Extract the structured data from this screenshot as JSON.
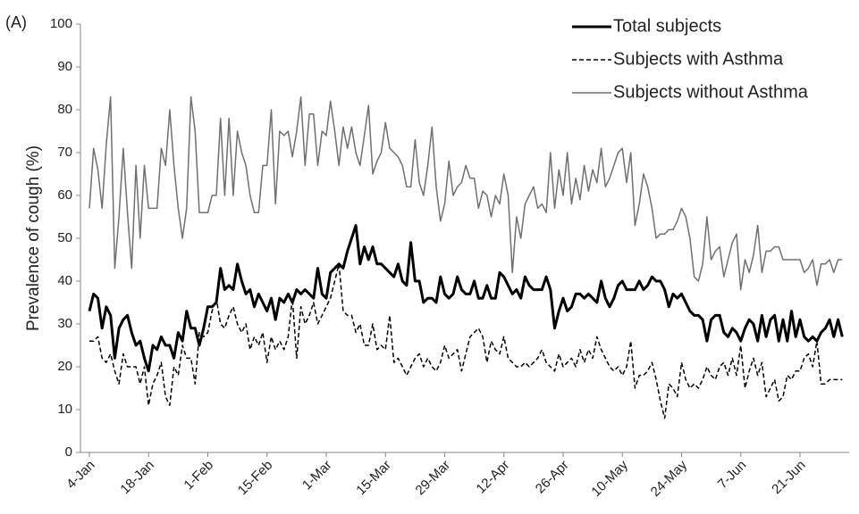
{
  "chart_data": {
    "type": "line",
    "panel_label": "(A)",
    "y_label": "Prevalence of cough (%)",
    "ylim": [
      0,
      100
    ],
    "yticks": [
      0,
      10,
      20,
      30,
      40,
      50,
      60,
      70,
      80,
      90,
      100
    ],
    "legend": "upper right",
    "categories": [
      "4-Jan",
      null,
      null,
      null,
      null,
      null,
      null,
      null,
      null,
      null,
      null,
      null,
      null,
      null,
      "18-Jan",
      null,
      null,
      null,
      null,
      null,
      null,
      null,
      null,
      null,
      null,
      null,
      null,
      null,
      "1-Feb",
      null,
      null,
      null,
      null,
      null,
      null,
      null,
      null,
      null,
      null,
      null,
      null,
      null,
      "15-Feb",
      null,
      null,
      null,
      null,
      null,
      null,
      null,
      null,
      null,
      null,
      null,
      null,
      null,
      "1-Mar",
      null,
      null,
      null,
      null,
      null,
      null,
      null,
      null,
      null,
      null,
      null,
      null,
      null,
      "15-Mar",
      null,
      null,
      null,
      null,
      null,
      null,
      null,
      null,
      null,
      null,
      null,
      null,
      null,
      "29-Mar",
      null,
      null,
      null,
      null,
      null,
      null,
      null,
      null,
      null,
      null,
      null,
      null,
      null,
      "12-Apr",
      null,
      null,
      null,
      null,
      null,
      null,
      null,
      null,
      null,
      null,
      null,
      null,
      null,
      "26-Apr",
      null,
      null,
      null,
      null,
      null,
      null,
      null,
      null,
      null,
      null,
      null,
      null,
      null,
      "10-May",
      null,
      null,
      null,
      null,
      null,
      null,
      null,
      null,
      null,
      null,
      null,
      null,
      null,
      "24-May",
      null,
      null,
      null,
      null,
      null,
      null,
      null,
      null,
      null,
      null,
      null,
      null,
      null,
      "7-Jun",
      null,
      null,
      null,
      null,
      null,
      null,
      null,
      null,
      null,
      null,
      null,
      null,
      null,
      "21-Jun",
      null,
      null,
      null,
      null,
      null,
      null,
      null,
      null,
      null,
      null
    ],
    "series": [
      {
        "name": "Total subjects",
        "color": "#000000",
        "width": 3,
        "dash": false,
        "values": [
          33,
          37,
          36,
          29,
          34,
          32,
          22,
          29,
          31,
          32,
          28,
          25,
          26,
          22,
          19,
          25,
          24,
          27,
          25,
          25,
          22,
          28,
          26,
          33,
          29,
          29,
          25,
          29,
          34,
          34,
          35,
          43,
          38,
          39,
          38,
          44,
          40,
          37,
          38,
          34,
          37,
          35,
          33,
          36,
          31,
          36,
          35,
          37,
          35,
          38,
          37,
          38,
          37,
          36,
          43,
          37,
          36,
          42,
          43,
          44,
          43,
          47,
          50,
          53,
          44,
          48,
          45,
          48,
          44,
          44,
          43,
          42,
          41,
          44,
          40,
          39,
          49,
          40,
          40,
          35,
          36,
          36,
          35,
          41,
          37,
          36,
          37,
          41,
          38,
          37,
          37,
          40,
          36,
          36,
          39,
          36,
          36,
          42,
          41,
          39,
          37,
          38,
          36,
          41,
          39,
          38,
          38,
          38,
          41,
          38,
          29,
          33,
          36,
          33,
          34,
          37,
          37,
          36,
          37,
          36,
          35,
          40,
          36,
          34,
          36,
          39,
          40,
          38,
          38,
          38,
          40,
          38,
          39,
          41,
          40,
          40,
          38,
          34,
          37,
          36,
          37,
          35,
          33,
          32,
          32,
          31,
          26,
          31,
          32,
          32,
          28,
          27,
          29,
          28,
          26,
          29,
          31,
          30,
          26,
          32,
          27,
          31,
          32,
          26,
          31,
          26,
          33,
          27,
          31,
          27,
          26,
          27,
          26,
          28,
          29,
          31,
          27,
          31,
          27
        ]
      },
      {
        "name": "Subjects with Asthma",
        "color": "#000000",
        "width": 1.5,
        "dash": true,
        "values": [
          26,
          26,
          27,
          22,
          21,
          23,
          19,
          16,
          23,
          20,
          20,
          20,
          16,
          20,
          11,
          16,
          18,
          21,
          13,
          11,
          20,
          18,
          25,
          22,
          22,
          16,
          28,
          27,
          28,
          33,
          36,
          30,
          29,
          32,
          34,
          30,
          28,
          30,
          24,
          27,
          25,
          28,
          21,
          27,
          24,
          26,
          24,
          27,
          36,
          22,
          34,
          30,
          32,
          35,
          30,
          32,
          34,
          36,
          40,
          44,
          33,
          32,
          32,
          28,
          30,
          25,
          25,
          30,
          24,
          25,
          24,
          32,
          21,
          22,
          20,
          18,
          20,
          22,
          23,
          20,
          22,
          20,
          19,
          21,
          25,
          22,
          23,
          24,
          19,
          23,
          27,
          28,
          29,
          27,
          21,
          26,
          24,
          23,
          27,
          22,
          21,
          20,
          20,
          21,
          20,
          21,
          22,
          24,
          21,
          20,
          19,
          23,
          20,
          21,
          22,
          20,
          24,
          21,
          24,
          22,
          27,
          24,
          22,
          20,
          19,
          20,
          18,
          20,
          26,
          15,
          18,
          18,
          19,
          21,
          17,
          12,
          8,
          16,
          15,
          13,
          21,
          17,
          15,
          16,
          15,
          17,
          20,
          18,
          17,
          20,
          21,
          18,
          22,
          18,
          25,
          15,
          19,
          22,
          18,
          21,
          13,
          15,
          17,
          12,
          13,
          18,
          17,
          19,
          19,
          22,
          23,
          20,
          26,
          16,
          16,
          17,
          17,
          17,
          17
        ]
      },
      {
        "name": "Subjects without Asthma",
        "color": "#707070",
        "width": 1.5,
        "dash": false,
        "values": [
          57,
          71,
          66,
          57,
          72,
          83,
          43,
          55,
          71,
          56,
          43,
          67,
          50,
          67,
          57,
          57,
          57,
          71,
          67,
          80,
          67,
          57,
          50,
          57,
          83,
          75,
          56,
          56,
          56,
          60,
          60,
          78,
          60,
          78,
          60,
          75,
          70,
          67,
          60,
          56,
          56,
          67,
          67,
          80,
          58,
          75,
          74,
          75,
          69,
          75,
          83,
          67,
          79,
          79,
          67,
          75,
          74,
          82,
          75,
          67,
          76,
          71,
          76,
          70,
          67,
          74,
          81,
          65,
          68,
          70,
          77,
          71,
          70,
          69,
          67,
          62,
          62,
          73,
          63,
          60,
          67,
          76,
          62,
          54,
          58,
          68,
          60,
          62,
          63,
          67,
          64,
          64,
          57,
          61,
          60,
          55,
          60,
          58,
          65,
          60,
          42,
          55,
          50,
          58,
          60,
          62,
          57,
          58,
          56,
          70,
          57,
          66,
          60,
          70,
          58,
          64,
          59,
          67,
          61,
          66,
          63,
          71,
          62,
          64,
          67,
          70,
          71,
          63,
          70,
          53,
          58,
          65,
          62,
          57,
          50,
          51,
          51,
          52,
          52,
          54,
          57,
          55,
          50,
          41,
          40,
          44,
          55,
          45,
          47,
          48,
          41,
          45,
          49,
          51,
          38,
          45,
          42,
          46,
          53,
          42,
          47,
          47,
          48,
          48,
          45,
          45,
          45,
          45,
          45,
          42,
          43,
          45,
          39,
          44,
          44,
          45,
          42,
          45,
          45
        ]
      }
    ]
  }
}
